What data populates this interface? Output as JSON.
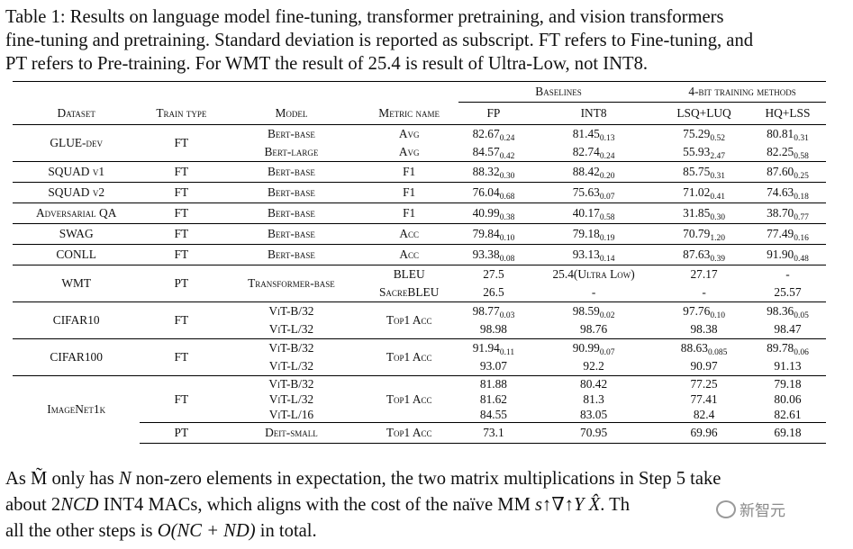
{
  "caption": {
    "lines": [
      "Table 1: Results on language model fine-tuning, transformer pretraining, and vision transformers",
      "fine-tuning and pretraining. Standard deviation is reported as subscript. FT refers to Fine-tuning, and",
      "PT refers to Pre-training. For WMT the result of 25.4 is result of Ultra-Low, not INT8."
    ]
  },
  "table": {
    "group_headers": {
      "baselines": "Baselines",
      "fourbit": "4-bit training methods"
    },
    "headers": [
      "Dataset",
      "Train type",
      "Model",
      "Metric name",
      "FP",
      "INT8",
      "LSQ+LUQ",
      "HQ+LSS"
    ],
    "rows": [
      {
        "dataset": "GLUE-dev",
        "train": "FT",
        "models": [
          "Bert-base",
          "Bert-large"
        ],
        "metrics": [
          "Avg",
          "Avg"
        ],
        "fp": [
          [
            "82.67",
            "0.24"
          ],
          [
            "84.57",
            "0.42"
          ]
        ],
        "int8": [
          [
            "81.45",
            "0.13"
          ],
          [
            "82.74",
            "0.24"
          ]
        ],
        "lsq": [
          [
            "75.29",
            "0.52"
          ],
          [
            "55.93",
            "2.47"
          ]
        ],
        "hq": [
          [
            "80.81",
            "0.31"
          ],
          [
            "82.25",
            "0.58"
          ]
        ]
      },
      {
        "dataset": "SQUAD v1",
        "train": "FT",
        "models": [
          "Bert-base"
        ],
        "metrics": [
          "F1"
        ],
        "fp": [
          [
            "88.32",
            "0.30"
          ]
        ],
        "int8": [
          [
            "88.42",
            "0.20"
          ]
        ],
        "lsq": [
          [
            "85.75",
            "0.31"
          ]
        ],
        "hq": [
          [
            "87.60",
            "0.25"
          ]
        ]
      },
      {
        "dataset": "SQUAD v2",
        "train": "FT",
        "models": [
          "Bert-base"
        ],
        "metrics": [
          "F1"
        ],
        "fp": [
          [
            "76.04",
            "0.68"
          ]
        ],
        "int8": [
          [
            "75.63",
            "0.07"
          ]
        ],
        "lsq": [
          [
            "71.02",
            "0.41"
          ]
        ],
        "hq": [
          [
            "74.63",
            "0.18"
          ]
        ]
      },
      {
        "dataset": "Adversarial QA",
        "train": "FT",
        "models": [
          "Bert-base"
        ],
        "metrics": [
          "F1"
        ],
        "fp": [
          [
            "40.99",
            "0.38"
          ]
        ],
        "int8": [
          [
            "40.17",
            "0.58"
          ]
        ],
        "lsq": [
          [
            "31.85",
            "0.30"
          ]
        ],
        "hq": [
          [
            "38.70",
            "0.77"
          ]
        ]
      },
      {
        "dataset": "SWAG",
        "train": "FT",
        "models": [
          "Bert-base"
        ],
        "metrics": [
          "Acc"
        ],
        "fp": [
          [
            "79.84",
            "0.10"
          ]
        ],
        "int8": [
          [
            "79.18",
            "0.19"
          ]
        ],
        "lsq": [
          [
            "70.79",
            "1.20"
          ]
        ],
        "hq": [
          [
            "77.49",
            "0.16"
          ]
        ]
      },
      {
        "dataset": "CONLL",
        "train": "FT",
        "models": [
          "Bert-base"
        ],
        "metrics": [
          "Acc"
        ],
        "fp": [
          [
            "93.38",
            "0.08"
          ]
        ],
        "int8": [
          [
            "93.13",
            "0.14"
          ]
        ],
        "lsq": [
          [
            "87.63",
            "0.39"
          ]
        ],
        "hq": [
          [
            "91.90",
            "0.48"
          ]
        ]
      },
      {
        "dataset": "WMT",
        "train": "PT",
        "models": [
          "Transformer-base"
        ],
        "metrics": [
          "BLEU",
          "SacreBLEU"
        ],
        "fp": [
          [
            "27.5",
            ""
          ],
          [
            "26.5",
            ""
          ]
        ],
        "int8": [
          [
            "25.4(Ultra Low)",
            ""
          ],
          [
            "-",
            ""
          ]
        ],
        "lsq": [
          [
            "27.17",
            ""
          ],
          [
            "-",
            ""
          ]
        ],
        "hq": [
          [
            "-",
            ""
          ],
          [
            "25.57",
            ""
          ]
        ]
      },
      {
        "dataset": "CIFAR10",
        "train": "FT",
        "models": [
          "ViT-B/32",
          "ViT-L/32"
        ],
        "metrics": [
          "Top1 Acc"
        ],
        "fp": [
          [
            "98.77",
            "0.03"
          ],
          [
            "98.98",
            ""
          ]
        ],
        "int8": [
          [
            "98.59",
            "0.02"
          ],
          [
            "98.76",
            ""
          ]
        ],
        "lsq": [
          [
            "97.76",
            "0.10"
          ],
          [
            "98.38",
            ""
          ]
        ],
        "hq": [
          [
            "98.36",
            "0.05"
          ],
          [
            "98.47",
            ""
          ]
        ]
      },
      {
        "dataset": "CIFAR100",
        "train": "FT",
        "models": [
          "ViT-B/32",
          "ViT-L/32"
        ],
        "metrics": [
          "Top1 Acc"
        ],
        "fp": [
          [
            "91.94",
            "0.11"
          ],
          [
            "93.07",
            ""
          ]
        ],
        "int8": [
          [
            "90.99",
            "0.07"
          ],
          [
            "92.2",
            ""
          ]
        ],
        "lsq": [
          [
            "88.63",
            "0.085"
          ],
          [
            "90.97",
            ""
          ]
        ],
        "hq": [
          [
            "89.78",
            "0.06"
          ],
          [
            "91.13",
            ""
          ]
        ]
      },
      {
        "dataset": "ImageNet1k",
        "train": "FT",
        "models": [
          "ViT-B/32",
          "ViT-L/32",
          "ViT-L/16"
        ],
        "metrics": [
          "Top1 Acc"
        ],
        "fp": [
          [
            "81.88",
            ""
          ],
          [
            "81.62",
            ""
          ],
          [
            "84.55",
            ""
          ]
        ],
        "int8": [
          [
            "80.42",
            ""
          ],
          [
            "81.3",
            ""
          ],
          [
            "83.05",
            ""
          ]
        ],
        "lsq": [
          [
            "77.25",
            ""
          ],
          [
            "77.41",
            ""
          ],
          [
            "82.4",
            ""
          ]
        ],
        "hq": [
          [
            "79.18",
            ""
          ],
          [
            "80.06",
            ""
          ],
          [
            "82.61",
            ""
          ]
        ]
      },
      {
        "dataset": "",
        "train": "PT",
        "models": [
          "Deit-small"
        ],
        "metrics": [
          "Top1 Acc"
        ],
        "fp": [
          [
            "73.1",
            ""
          ]
        ],
        "int8": [
          [
            "70.95",
            ""
          ]
        ],
        "lsq": [
          [
            "69.96",
            ""
          ]
        ],
        "hq": [
          [
            "69.18",
            ""
          ]
        ]
      }
    ]
  },
  "paragraph": {
    "p1a": "As ",
    "m_tilde": "M̃",
    "p1b": " only has ",
    "n": "N",
    "p1c": " non-zero elements in expectation, the two matrix multiplications in Step 5 take",
    "p2a": "about 2",
    "ncd": "NCD",
    "p2b": " INT4 MACs, which aligns with the cost of the naïve MM ",
    "mm": "s↑∇↑Y X̂",
    "p2c": ". Th",
    "p3a": "all the other steps is ",
    "complexity": "O(NC + ND)",
    "p3b": " in total."
  },
  "watermark": {
    "text": "新智元"
  }
}
